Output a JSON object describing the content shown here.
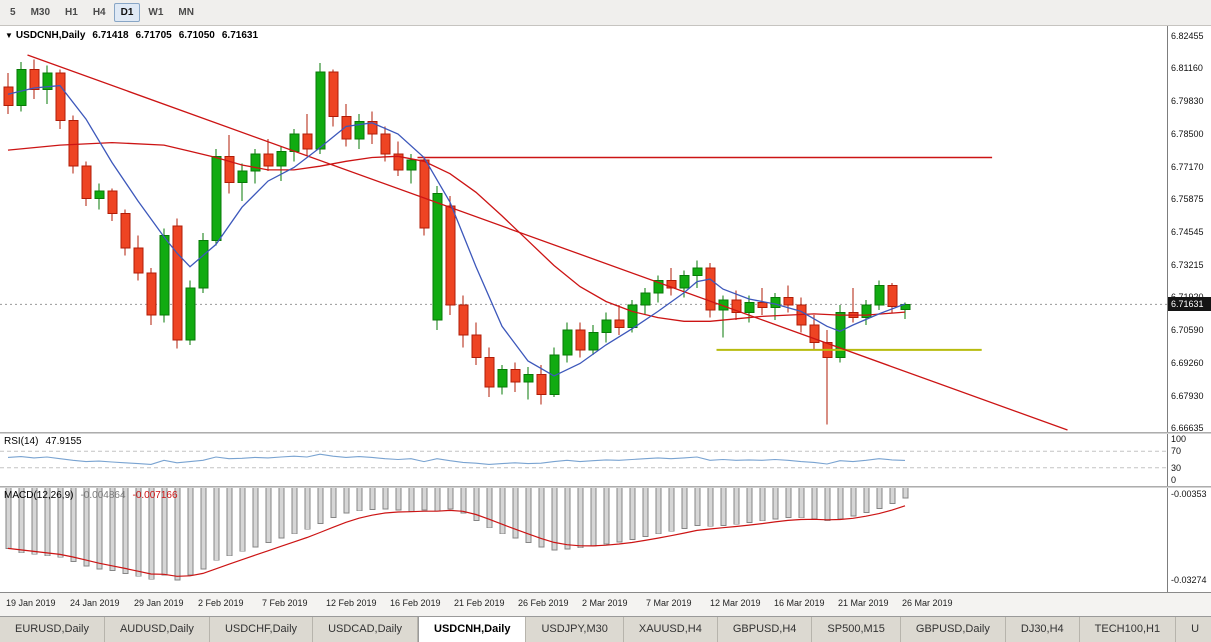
{
  "toolbar": {
    "timeframes": [
      {
        "label": "5",
        "active": false
      },
      {
        "label": "M30",
        "active": false
      },
      {
        "label": "H1",
        "active": false
      },
      {
        "label": "H4",
        "active": false
      },
      {
        "label": "D1",
        "active": true
      },
      {
        "label": "W1",
        "active": false
      },
      {
        "label": "MN",
        "active": false
      }
    ]
  },
  "header": {
    "symbol_label": "USDCNH,Daily",
    "open": "6.71418",
    "high": "6.71705",
    "low": "6.71050",
    "close": "6.71631"
  },
  "rsi_label": {
    "name": "RSI(14)",
    "value": "47.9155"
  },
  "macd_label": {
    "name": "MACD(12,26,9)",
    "main": "-0.004864",
    "signal": "-0.007166"
  },
  "price_scale": {
    "ticks": [
      "6.82455",
      "6.81160",
      "6.79830",
      "6.78500",
      "6.77170",
      "6.75875",
      "6.74545",
      "6.73215",
      "6.71920",
      "6.70590",
      "6.69260",
      "6.67930",
      "6.66635"
    ],
    "current_badge": "6.71631"
  },
  "date_axis": [
    "19 Jan 2019",
    "24 Jan 2019",
    "29 Jan 2019",
    "2 Feb 2019",
    "7 Feb 2019",
    "12 Feb 2019",
    "16 Feb 2019",
    "21 Feb 2019",
    "26 Feb 2019",
    "2 Mar 2019",
    "7 Mar 2019",
    "12 Mar 2019",
    "16 Mar 2019",
    "21 Mar 2019",
    "26 Mar 2019"
  ],
  "tabs": [
    {
      "label": "EURUSD,Daily",
      "active": false
    },
    {
      "label": "AUDUSD,Daily",
      "active": false
    },
    {
      "label": "USDCHF,Daily",
      "active": false
    },
    {
      "label": "USDCAD,Daily",
      "active": false
    },
    {
      "label": "USDCNH,Daily",
      "active": true
    },
    {
      "label": "USDJPY,M30",
      "active": false
    },
    {
      "label": "XAUUSD,H4",
      "active": false
    },
    {
      "label": "GBPUSD,H4",
      "active": false
    },
    {
      "label": "SP500,M15",
      "active": false
    },
    {
      "label": "GBPUSD,Daily",
      "active": false
    },
    {
      "label": "DJ30,H4",
      "active": false
    },
    {
      "label": "TECH100,H1",
      "active": false
    },
    {
      "label": "U",
      "active": false
    }
  ],
  "colors": {
    "bull": "#11ab11",
    "bull_stroke": "#077a07",
    "bear": "#ee4423",
    "bear_stroke": "#b01c07",
    "ma_fast": "#3d58bb",
    "ma_slow": "#cc1414",
    "trend": "#cc1414",
    "support": "#b7bb0e",
    "rsi_line": "#79a3d1",
    "macd_bar_fill": "#d6d6d6",
    "macd_bar_stroke": "#858585",
    "macd_signal": "#cc1414",
    "level_dash": "#c4c4c4",
    "current_price_line": "#9a9a9a",
    "badge_bg": "#141414"
  },
  "chart_data": {
    "type": "candlestick",
    "symbol": "USDCNH",
    "timeframe": "Daily",
    "title": "USDCNH,Daily",
    "current_price": 6.71631,
    "price_axis": {
      "min": 6.6645,
      "max": 6.8285
    },
    "x_labels": [
      "19 Jan 2019",
      "24 Jan 2019",
      "29 Jan 2019",
      "2 Feb 2019",
      "7 Feb 2019",
      "12 Feb 2019",
      "16 Feb 2019",
      "21 Feb 2019",
      "26 Feb 2019",
      "2 Mar 2019",
      "7 Mar 2019",
      "12 Mar 2019",
      "16 Mar 2019",
      "21 Mar 2019",
      "26 Mar 2019"
    ],
    "candles": [
      [
        6.804,
        6.8095,
        6.793,
        6.7965
      ],
      [
        6.7965,
        6.814,
        6.794,
        6.811
      ],
      [
        6.811,
        6.815,
        6.799,
        6.803
      ],
      [
        6.803,
        6.8125,
        6.797,
        6.8095
      ],
      [
        6.8095,
        6.811,
        6.787,
        6.7905
      ],
      [
        6.7905,
        6.7925,
        6.769,
        6.772
      ],
      [
        6.772,
        6.774,
        6.756,
        6.759
      ],
      [
        6.759,
        6.765,
        6.7545,
        6.762
      ],
      [
        6.762,
        6.763,
        6.75,
        6.753
      ],
      [
        6.753,
        6.7545,
        6.736,
        6.739
      ],
      [
        6.739,
        6.744,
        6.726,
        6.729
      ],
      [
        6.729,
        6.731,
        6.708,
        6.712
      ],
      [
        6.712,
        6.747,
        6.709,
        6.744
      ],
      [
        6.748,
        6.751,
        6.6985,
        6.702
      ],
      [
        6.702,
        6.726,
        6.7,
        6.723
      ],
      [
        6.723,
        6.745,
        6.721,
        6.742
      ],
      [
        6.742,
        6.779,
        6.74,
        6.776
      ],
      [
        6.776,
        6.7845,
        6.761,
        6.7655
      ],
      [
        6.7655,
        6.773,
        6.758,
        6.77
      ],
      [
        6.77,
        6.779,
        6.765,
        6.777
      ],
      [
        6.777,
        6.783,
        6.77,
        6.772
      ],
      [
        6.772,
        6.78,
        6.766,
        6.778
      ],
      [
        6.778,
        6.787,
        6.774,
        6.785
      ],
      [
        6.785,
        6.793,
        6.776,
        6.779
      ],
      [
        6.779,
        6.8135,
        6.777,
        6.81
      ],
      [
        6.81,
        6.811,
        6.788,
        6.792
      ],
      [
        6.792,
        6.797,
        6.78,
        6.783
      ],
      [
        6.783,
        6.793,
        6.779,
        6.79
      ],
      [
        6.79,
        6.794,
        6.781,
        6.785
      ],
      [
        6.785,
        6.788,
        6.774,
        6.777
      ],
      [
        6.777,
        6.782,
        6.768,
        6.7705
      ],
      [
        6.7705,
        6.777,
        6.765,
        6.7745
      ],
      [
        6.7745,
        6.776,
        6.744,
        6.747
      ],
      [
        6.71,
        6.764,
        6.706,
        6.761
      ],
      [
        6.756,
        6.76,
        6.712,
        6.716
      ],
      [
        6.716,
        6.72,
        6.699,
        6.704
      ],
      [
        6.704,
        6.709,
        6.692,
        6.695
      ],
      [
        6.695,
        6.699,
        6.679,
        6.683
      ],
      [
        6.683,
        6.692,
        6.68,
        6.69
      ],
      [
        6.69,
        6.693,
        6.681,
        6.685
      ],
      [
        6.685,
        6.691,
        6.678,
        6.688
      ],
      [
        6.688,
        6.692,
        6.676,
        6.68
      ],
      [
        6.68,
        6.699,
        6.679,
        6.696
      ],
      [
        6.696,
        6.709,
        6.693,
        6.706
      ],
      [
        6.706,
        6.709,
        6.695,
        6.698
      ],
      [
        6.698,
        6.708,
        6.696,
        6.705
      ],
      [
        6.705,
        6.713,
        6.701,
        6.71
      ],
      [
        6.71,
        6.716,
        6.704,
        6.707
      ],
      [
        6.707,
        6.718,
        6.705,
        6.716
      ],
      [
        6.716,
        6.723,
        6.712,
        6.721
      ],
      [
        6.721,
        6.728,
        6.717,
        6.726
      ],
      [
        6.726,
        6.731,
        6.72,
        6.723
      ],
      [
        6.723,
        6.73,
        6.719,
        6.728
      ],
      [
        6.728,
        6.734,
        6.723,
        6.731
      ],
      [
        6.731,
        6.733,
        6.711,
        6.714
      ],
      [
        6.714,
        6.72,
        6.703,
        6.718
      ],
      [
        6.718,
        6.722,
        6.71,
        6.713
      ],
      [
        6.713,
        6.72,
        6.709,
        6.717
      ],
      [
        6.717,
        6.723,
        6.712,
        6.715
      ],
      [
        6.715,
        6.721,
        6.71,
        6.719
      ],
      [
        6.719,
        6.724,
        6.713,
        6.716
      ],
      [
        6.716,
        6.719,
        6.705,
        6.708
      ],
      [
        6.708,
        6.712,
        6.698,
        6.701
      ],
      [
        6.701,
        6.706,
        6.668,
        6.695
      ],
      [
        6.695,
        6.716,
        6.693,
        6.713
      ],
      [
        6.713,
        6.723,
        6.709,
        6.711
      ],
      [
        6.711,
        6.718,
        6.708,
        6.716
      ],
      [
        6.716,
        6.726,
        6.714,
        6.724
      ],
      [
        6.724,
        6.725,
        6.713,
        6.7155
      ],
      [
        6.71418,
        6.71705,
        6.7105,
        6.71631
      ]
    ],
    "overlays": {
      "ma_fast_points": [
        [
          0,
          6.801
        ],
        [
          2,
          6.8035
        ],
        [
          4,
          6.8045
        ],
        [
          6,
          6.791
        ],
        [
          8,
          6.7735
        ],
        [
          10,
          6.758
        ],
        [
          12,
          6.7435
        ],
        [
          13,
          6.737
        ],
        [
          14,
          6.7315
        ],
        [
          16,
          6.7405
        ],
        [
          18,
          6.7555
        ],
        [
          20,
          6.766
        ],
        [
          22,
          6.7715
        ],
        [
          24,
          6.7795
        ],
        [
          26,
          6.788
        ],
        [
          28,
          6.7895
        ],
        [
          30,
          6.785
        ],
        [
          32,
          6.7755
        ],
        [
          34,
          6.7575
        ],
        [
          36,
          6.7315
        ],
        [
          38,
          6.7075
        ],
        [
          40,
          6.6935
        ],
        [
          42,
          6.6875
        ],
        [
          44,
          6.6925
        ],
        [
          46,
          6.7
        ],
        [
          48,
          6.7065
        ],
        [
          50,
          6.7135
        ],
        [
          52,
          6.721
        ],
        [
          53,
          6.7255
        ],
        [
          54,
          6.7265
        ],
        [
          55,
          6.7225
        ],
        [
          57,
          6.7185
        ],
        [
          59,
          6.7165
        ],
        [
          61,
          6.7135
        ],
        [
          63,
          6.7075
        ],
        [
          64,
          6.7055
        ],
        [
          65,
          6.708
        ],
        [
          67,
          6.7125
        ],
        [
          69,
          6.7165
        ]
      ],
      "ma_slow_points": [
        [
          0,
          6.7785
        ],
        [
          4,
          6.7805
        ],
        [
          8,
          6.7815
        ],
        [
          12,
          6.7805
        ],
        [
          14,
          6.778
        ],
        [
          16,
          6.7755
        ],
        [
          18,
          6.7725
        ],
        [
          20,
          6.7705
        ],
        [
          22,
          6.7705
        ],
        [
          24,
          6.772
        ],
        [
          26,
          6.774
        ],
        [
          28,
          6.7755
        ],
        [
          30,
          6.776
        ],
        [
          32,
          6.774
        ],
        [
          34,
          6.769
        ],
        [
          36,
          6.7615
        ],
        [
          38,
          6.752
        ],
        [
          40,
          6.742
        ],
        [
          42,
          6.732
        ],
        [
          44,
          6.7235
        ],
        [
          46,
          6.7175
        ],
        [
          48,
          6.7135
        ],
        [
          50,
          6.711
        ],
        [
          52,
          6.7095
        ],
        [
          54,
          6.7095
        ],
        [
          56,
          6.7105
        ],
        [
          58,
          6.7115
        ],
        [
          60,
          6.712
        ],
        [
          62,
          6.7125
        ],
        [
          64,
          6.712
        ],
        [
          66,
          6.712
        ],
        [
          68,
          6.7128
        ],
        [
          69,
          6.7132
        ]
      ],
      "trendline": {
        "from_bar": 1.5,
        "from_price": 6.8168,
        "to_bar": 81.5,
        "to_price": 6.6657
      },
      "resistance": {
        "price": 6.7755,
        "from_bar": 31.5,
        "to_bar": 75.7
      },
      "support": {
        "price": 6.698,
        "from_bar": 54.5,
        "to_bar": 74.9
      }
    },
    "rsi": {
      "period": 14,
      "current": 47.9155,
      "levels": [
        70,
        30
      ],
      "scale_labels": [
        "100",
        "70",
        "30",
        "0"
      ],
      "values": [
        55,
        57,
        54,
        56,
        52,
        48,
        45,
        46,
        44,
        42,
        40,
        38,
        48,
        42,
        45,
        48,
        56,
        52,
        53,
        55,
        54,
        56,
        58,
        56,
        63,
        58,
        55,
        57,
        55,
        52,
        50,
        52,
        45,
        52,
        47,
        43,
        41,
        38,
        40,
        42,
        40,
        41,
        45,
        48,
        45,
        47,
        49,
        48,
        50,
        52,
        54,
        52,
        54,
        56,
        48,
        50,
        48,
        49,
        48,
        50,
        48,
        45,
        43,
        39,
        47,
        45,
        48,
        52,
        49,
        47.9155
      ]
    },
    "macd": {
      "params": "12,26,9",
      "current_main": -0.004864,
      "current_signal": -0.007166,
      "scale_labels": [
        "-0.00353",
        "-0.03274"
      ],
      "scale_range": [
        -0.00353,
        -0.03274
      ],
      "values": [
        -0.022,
        -0.0235,
        -0.024,
        -0.0245,
        -0.025,
        -0.0265,
        -0.028,
        -0.029,
        -0.0295,
        -0.0305,
        -0.0315,
        -0.0325,
        -0.031,
        -0.0327,
        -0.031,
        -0.029,
        -0.026,
        -0.0245,
        -0.023,
        -0.0215,
        -0.02,
        -0.0185,
        -0.017,
        -0.0155,
        -0.0135,
        -0.0115,
        -0.01,
        -0.0092,
        -0.0088,
        -0.0086,
        -0.009,
        -0.0094,
        -0.009,
        -0.0094,
        -0.0086,
        -0.01,
        -0.0125,
        -0.015,
        -0.017,
        -0.0185,
        -0.02,
        -0.0215,
        -0.0225,
        -0.0222,
        -0.0218,
        -0.0212,
        -0.0205,
        -0.0198,
        -0.019,
        -0.018,
        -0.017,
        -0.0162,
        -0.0152,
        -0.0142,
        -0.0145,
        -0.0142,
        -0.0138,
        -0.0132,
        -0.0126,
        -0.012,
        -0.0115,
        -0.0116,
        -0.012,
        -0.0126,
        -0.012,
        -0.011,
        -0.0098,
        -0.0085,
        -0.0068,
        -0.004864
      ]
    }
  }
}
